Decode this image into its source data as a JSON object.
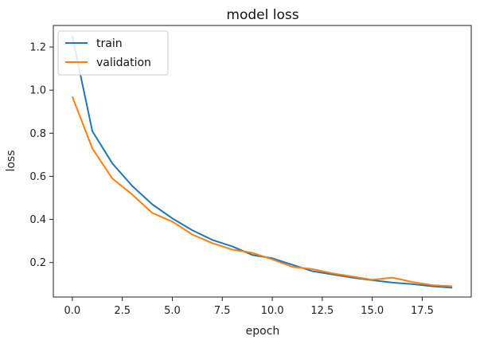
{
  "chart_data": {
    "type": "line",
    "title": "model loss",
    "xlabel": "epoch",
    "ylabel": "loss",
    "xlim": [
      -0.95,
      19.95
    ],
    "ylim": [
      0.04,
      1.3
    ],
    "xticks": [
      0.0,
      2.5,
      5.0,
      7.5,
      10.0,
      12.5,
      15.0,
      17.5
    ],
    "xtick_labels": [
      "0.0",
      "2.5",
      "5.0",
      "7.5",
      "10.0",
      "12.5",
      "15.0",
      "17.5"
    ],
    "yticks": [
      0.2,
      0.4,
      0.6,
      0.8,
      1.0,
      1.2
    ],
    "ytick_labels": [
      "0.2",
      "0.4",
      "0.6",
      "0.8",
      "1.0",
      "1.2"
    ],
    "x": [
      0,
      1,
      2,
      3,
      4,
      5,
      6,
      7,
      8,
      9,
      10,
      11,
      12,
      13,
      14,
      15,
      16,
      17,
      18,
      19
    ],
    "series": [
      {
        "name": "train",
        "color": "#1f77b4",
        "values": [
          1.25,
          0.81,
          0.66,
          0.555,
          0.47,
          0.405,
          0.35,
          0.305,
          0.275,
          0.235,
          0.22,
          0.19,
          0.16,
          0.145,
          0.13,
          0.118,
          0.107,
          0.1,
          0.09,
          0.083
        ]
      },
      {
        "name": "validation",
        "color": "#ff7f0e",
        "values": [
          0.97,
          0.73,
          0.59,
          0.515,
          0.43,
          0.39,
          0.33,
          0.29,
          0.26,
          0.245,
          0.215,
          0.18,
          0.17,
          0.15,
          0.135,
          0.12,
          0.13,
          0.11,
          0.095,
          0.09
        ]
      }
    ],
    "legend_position": "top-left",
    "grid": false
  }
}
